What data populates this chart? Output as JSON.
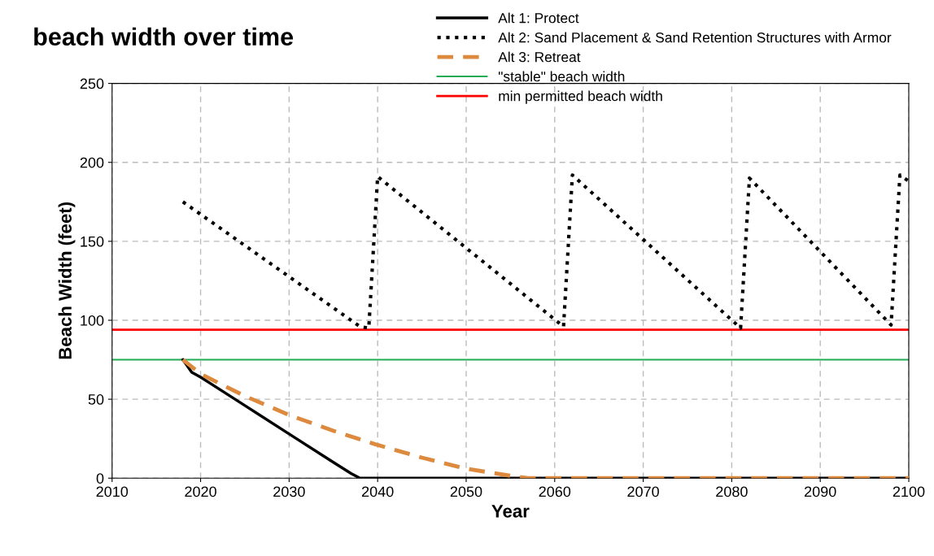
{
  "chart_data": {
    "type": "line",
    "title": "beach width over time",
    "xlabel": "Year",
    "ylabel": "Beach Width (feet)",
    "xlim": [
      2010,
      2100
    ],
    "xticks": [
      2010,
      2020,
      2030,
      2040,
      2050,
      2060,
      2070,
      2080,
      2090,
      2100
    ],
    "ylim": [
      0,
      250
    ],
    "yticks": [
      0,
      50,
      100,
      150,
      200,
      250
    ],
    "grid": true,
    "legend": "top right",
    "marker": "none",
    "series": [
      {
        "name": "Alt 1: Protect",
        "color": "#000000",
        "line_style": "solid",
        "x": [
          2018,
          2019,
          2020,
          2025,
          2030,
          2035,
          2037,
          2038,
          2045,
          2060,
          2080,
          2100
        ],
        "values": [
          75,
          67,
          64,
          46,
          28,
          10,
          3,
          0,
          0,
          0,
          0,
          0
        ]
      },
      {
        "name": "Alt 2: Sand Placement & Sand Retention Structures with Armor",
        "color": "#000000",
        "line_style": "dotted",
        "x": [
          2018,
          2038,
          2039,
          2040,
          2061,
          2062,
          2081,
          2082,
          2098,
          2099,
          2100
        ],
        "values": [
          175,
          96,
          95,
          191,
          96,
          192,
          95,
          190,
          97,
          192,
          188
        ]
      },
      {
        "name": "Alt 3: Retreat",
        "color": "#dd8a3e",
        "line_style": "dashed",
        "x": [
          2018,
          2020,
          2025,
          2030,
          2035,
          2040,
          2045,
          2050,
          2055,
          2057,
          2070,
          2100
        ],
        "values": [
          75,
          66,
          52,
          40,
          30,
          21,
          13,
          6,
          1.5,
          0,
          0,
          0
        ]
      }
    ],
    "ref_lines": [
      {
        "axis": "y",
        "value": 75,
        "label": "\"stable\" beach width",
        "color": "#22aa55",
        "line_style": "solid"
      },
      {
        "axis": "y",
        "value": 94,
        "label": "min permitted beach width",
        "color": "#ff0000",
        "line_style": "solid"
      }
    ]
  }
}
